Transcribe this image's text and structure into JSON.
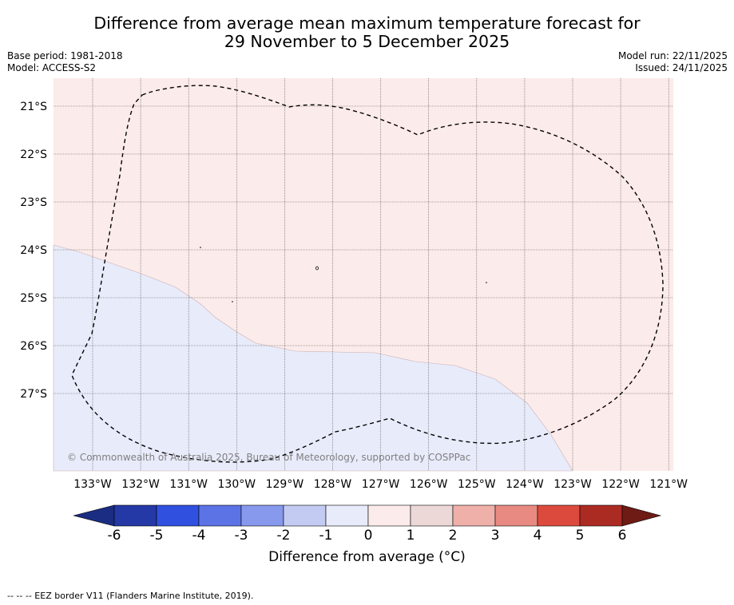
{
  "header": {
    "title_line1": "Difference from average mean maximum temperature forecast for",
    "title_line2": "29 November to 5 December 2025",
    "base_period": "Base period: 1981-2018",
    "model": "Model: ACCESS-S2",
    "model_run": "Model run: 22/11/2025",
    "issued": "Issued: 24/11/2025"
  },
  "map": {
    "lat_labels": [
      "21°S",
      "22°S",
      "23°S",
      "24°S",
      "25°S",
      "26°S",
      "27°S"
    ],
    "lon_labels": [
      "133°W",
      "132°W",
      "131°W",
      "130°W",
      "129°W",
      "128°W",
      "127°W",
      "126°W",
      "125°W",
      "124°W",
      "123°W",
      "122°W",
      "121°W"
    ],
    "copyright": "© Commonwealth of Australia 2025, Bureau of Meteorology, supported by COSPPac",
    "region_colors": {
      "warm_0_to_1": "#fbebea",
      "cool_minus1_to_0": "#e8ebfa"
    }
  },
  "colorbar": {
    "ticks": [
      "-6",
      "-5",
      "-4",
      "-3",
      "-2",
      "-1",
      "0",
      "1",
      "2",
      "3",
      "4",
      "5",
      "6"
    ],
    "colors": [
      "#2438a6",
      "#3050e0",
      "#5c73e6",
      "#8799ec",
      "#c3cbf3",
      "#e8ebfa",
      "#fbebea",
      "#ecd8d6",
      "#efb0aa",
      "#e88a81",
      "#dc4a3e",
      "#ab2a22"
    ],
    "extend_low_color": "#1a2d82",
    "extend_high_color": "#6e1a15",
    "label": "Difference from average (°C)"
  },
  "footnote": "--  --  -- EEZ border V11 (Flanders Marine Institute, 2019)."
}
